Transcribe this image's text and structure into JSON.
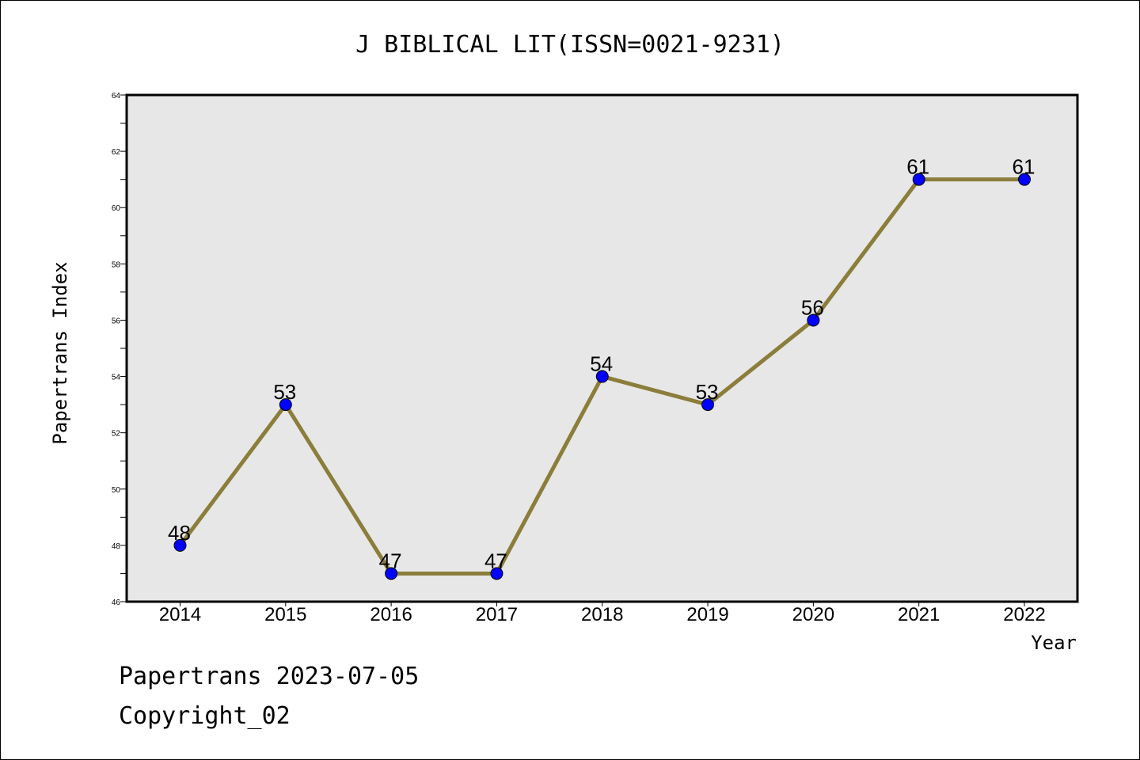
{
  "chart_data": {
    "type": "line",
    "title": "J BIBLICAL LIT(ISSN=0021-9231)",
    "xlabel": "Year",
    "ylabel": "Papertrans Index",
    "categories": [
      "2014",
      "2015",
      "2016",
      "2017",
      "2018",
      "2019",
      "2020",
      "2021",
      "2022"
    ],
    "values": [
      48,
      53,
      47,
      47,
      54,
      53,
      56,
      61,
      61
    ],
    "ylim": [
      46,
      64
    ],
    "yticks": [
      "46",
      "48",
      "50",
      "52",
      "54",
      "56",
      "58",
      "60",
      "62",
      "64"
    ],
    "grid": false,
    "colors": {
      "line": "#8b7d3a",
      "marker": "#0000ff",
      "plot_background": "#e7e7e7"
    }
  },
  "footer": {
    "line1": "Papertrans 2023-07-05",
    "line2": "Copyright_02"
  }
}
